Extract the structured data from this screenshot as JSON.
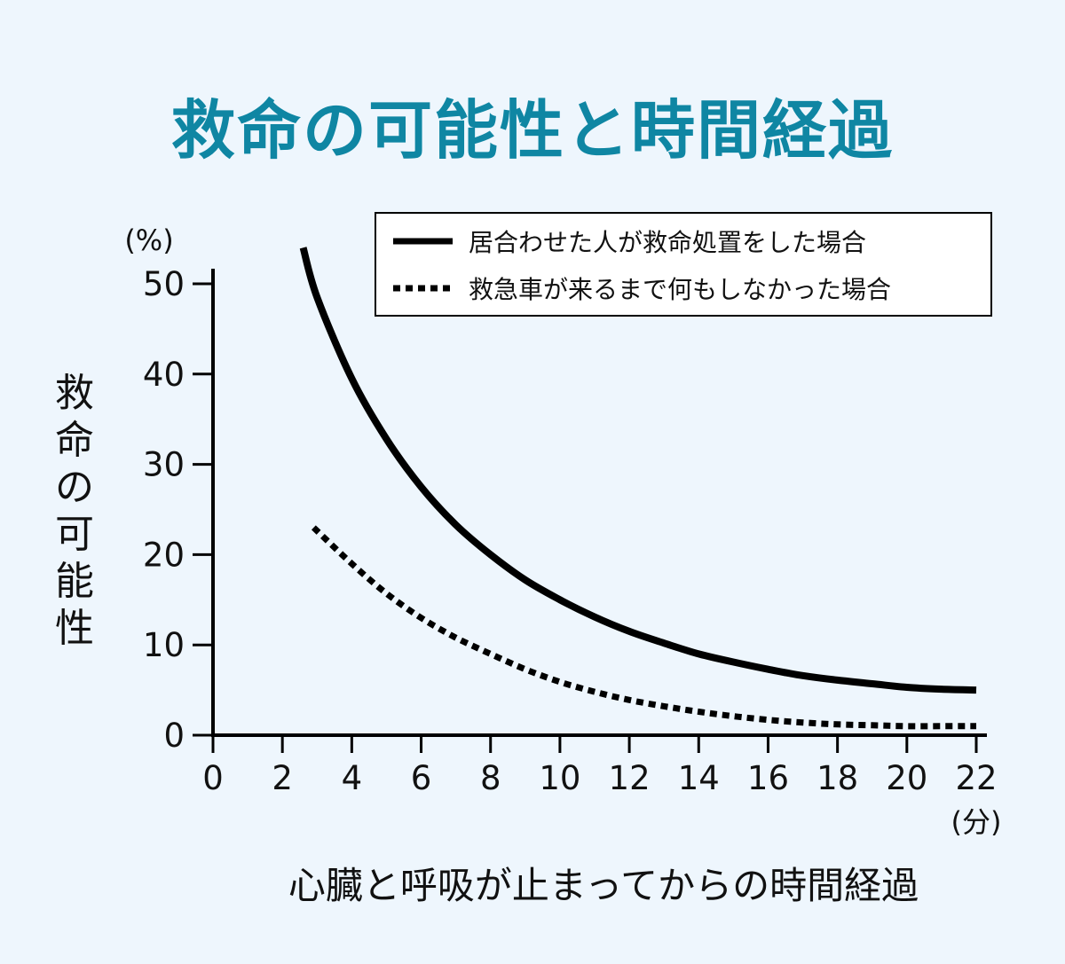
{
  "chart_data": {
    "type": "line",
    "title": "救命の可能性と時間経過",
    "xlabel": "心臓と呼吸が止まってからの時間経過",
    "ylabel": "救命の可能性",
    "x_unit": "(分)",
    "y_unit": "(%)",
    "xlim": [
      0,
      22
    ],
    "ylim": [
      0,
      50
    ],
    "x_ticks": [
      0,
      2,
      4,
      6,
      8,
      10,
      12,
      14,
      16,
      18,
      20,
      22
    ],
    "y_ticks": [
      0,
      10,
      20,
      30,
      40,
      50
    ],
    "grid": false,
    "legend_position": "top-right",
    "series": [
      {
        "name": "居合わせた人が救命処置をした場合",
        "style": "solid",
        "color": "#000000",
        "x": [
          2.6,
          3,
          4,
          5,
          6,
          7,
          8,
          9,
          10,
          11,
          12,
          13,
          14,
          15,
          16,
          17,
          18,
          19,
          20,
          21,
          22
        ],
        "y": [
          54,
          48.5,
          39.5,
          32.8,
          27.5,
          23.3,
          20.0,
          17.2,
          15.0,
          13.1,
          11.5,
          10.2,
          9.0,
          8.1,
          7.3,
          6.6,
          6.1,
          5.7,
          5.3,
          5.1,
          5.0
        ]
      },
      {
        "name": "救急車が来るまで何もしなかった場合",
        "style": "dotted",
        "color": "#000000",
        "x": [
          2.9,
          4,
          5,
          6,
          7,
          8,
          9,
          10,
          11,
          12,
          13,
          14,
          15,
          16,
          17,
          18,
          19,
          20,
          21,
          22
        ],
        "y": [
          23,
          19.0,
          15.7,
          13.0,
          10.8,
          9.0,
          7.3,
          5.9,
          4.8,
          3.9,
          3.2,
          2.6,
          2.1,
          1.7,
          1.4,
          1.2,
          1.1,
          1.0,
          1.0,
          1.0
        ]
      }
    ]
  }
}
